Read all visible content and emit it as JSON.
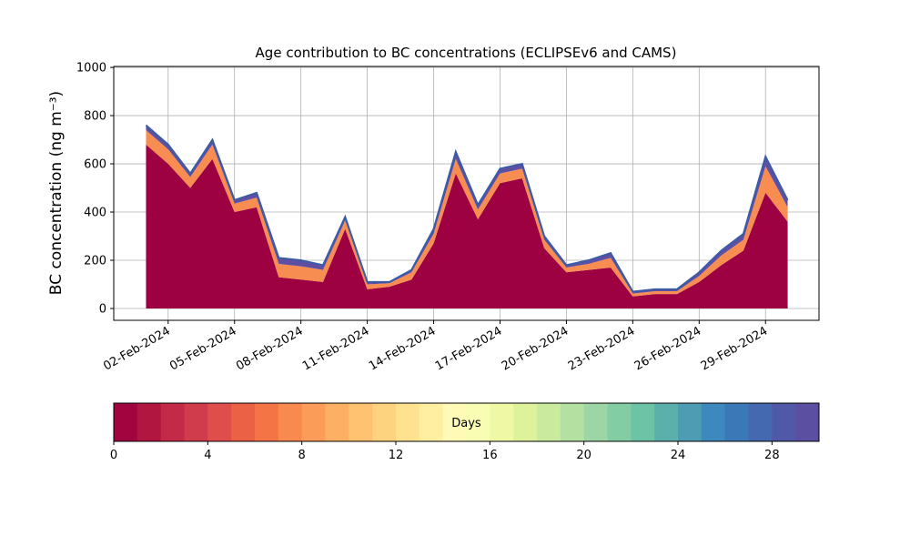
{
  "chart_data": {
    "type": "stacked_area",
    "title": "Age contribution to BC concentrations (ECLIPSEv6 and CAMS)",
    "ylabel": "BC concentration (ng m⁻³)",
    "x": [
      "2024-02-01",
      "2024-02-02",
      "2024-02-03",
      "2024-02-04",
      "2024-02-05",
      "2024-02-06",
      "2024-02-07",
      "2024-02-08",
      "2024-02-09",
      "2024-02-10",
      "2024-02-11",
      "2024-02-12",
      "2024-02-13",
      "2024-02-14",
      "2024-02-15",
      "2024-02-16",
      "2024-02-17",
      "2024-02-18",
      "2024-02-19",
      "2024-02-20",
      "2024-02-21",
      "2024-02-22",
      "2024-02-23",
      "2024-02-24",
      "2024-02-25",
      "2024-02-26",
      "2024-02-27",
      "2024-02-28",
      "2024-02-29",
      "2024-03-01"
    ],
    "series": [
      {
        "color": "#9e0142",
        "values": [
          680,
          600,
          500,
          620,
          400,
          420,
          130,
          120,
          110,
          330,
          80,
          90,
          120,
          270,
          560,
          370,
          520,
          540,
          250,
          150,
          160,
          170,
          50,
          60,
          60,
          110,
          180,
          240,
          480,
          360
        ]
      },
      {
        "color": "#f88d52",
        "values": [
          60,
          60,
          45,
          60,
          35,
          40,
          55,
          55,
          50,
          35,
          20,
          15,
          30,
          40,
          60,
          40,
          40,
          40,
          35,
          20,
          25,
          40,
          12,
          12,
          12,
          25,
          40,
          45,
          110,
          60
        ]
      },
      {
        "color": "#5e4fa2",
        "values": [
          20,
          20,
          15,
          20,
          15,
          20,
          25,
          25,
          20,
          15,
          10,
          5,
          10,
          20,
          30,
          20,
          20,
          20,
          15,
          10,
          15,
          20,
          8,
          8,
          8,
          15,
          20,
          25,
          40,
          30
        ]
      }
    ],
    "xlim": [
      "2024-01-30T13:00Z",
      "2024-03-02T10:00Z"
    ],
    "xticks": [
      {
        "value": "2024-02-02",
        "label": "02-Feb-2024"
      },
      {
        "value": "2024-02-05",
        "label": "05-Feb-2024"
      },
      {
        "value": "2024-02-08",
        "label": "08-Feb-2024"
      },
      {
        "value": "2024-02-11",
        "label": "11-Feb-2024"
      },
      {
        "value": "2024-02-14",
        "label": "14-Feb-2024"
      },
      {
        "value": "2024-02-17",
        "label": "17-Feb-2024"
      },
      {
        "value": "2024-02-20",
        "label": "20-Feb-2024"
      },
      {
        "value": "2024-02-23",
        "label": "23-Feb-2024"
      },
      {
        "value": "2024-02-26",
        "label": "26-Feb-2024"
      },
      {
        "value": "2024-02-29",
        "label": "29-Feb-2024"
      }
    ],
    "ylim": [
      -49,
      1004
    ],
    "yticks": [
      0,
      200,
      400,
      600,
      800,
      1000
    ],
    "grid": true,
    "outline_color": "#3b5ba5",
    "colorbar": {
      "label": "Days",
      "lim": [
        0,
        30
      ],
      "ticks": [
        0,
        4,
        8,
        12,
        16,
        20,
        24,
        28
      ],
      "colors": [
        "#a0053f",
        "#b0163f",
        "#c22a48",
        "#d13c4d",
        "#df4e4b",
        "#ea6146",
        "#f47446",
        "#f8894f",
        "#fb9d59",
        "#fdb064",
        "#fec271",
        "#fed380",
        "#fee290",
        "#feefa1",
        "#fffab6",
        "#f9fcb3",
        "#eef8a5",
        "#def29b",
        "#caea9d",
        "#b4e0a2",
        "#9bd6a4",
        "#83cda5",
        "#6dc3a5",
        "#5cb0ab",
        "#4d9cb3",
        "#3d88bc",
        "#3b78b8",
        "#4469b0",
        "#5059a8",
        "#5b4fa2"
      ]
    }
  }
}
